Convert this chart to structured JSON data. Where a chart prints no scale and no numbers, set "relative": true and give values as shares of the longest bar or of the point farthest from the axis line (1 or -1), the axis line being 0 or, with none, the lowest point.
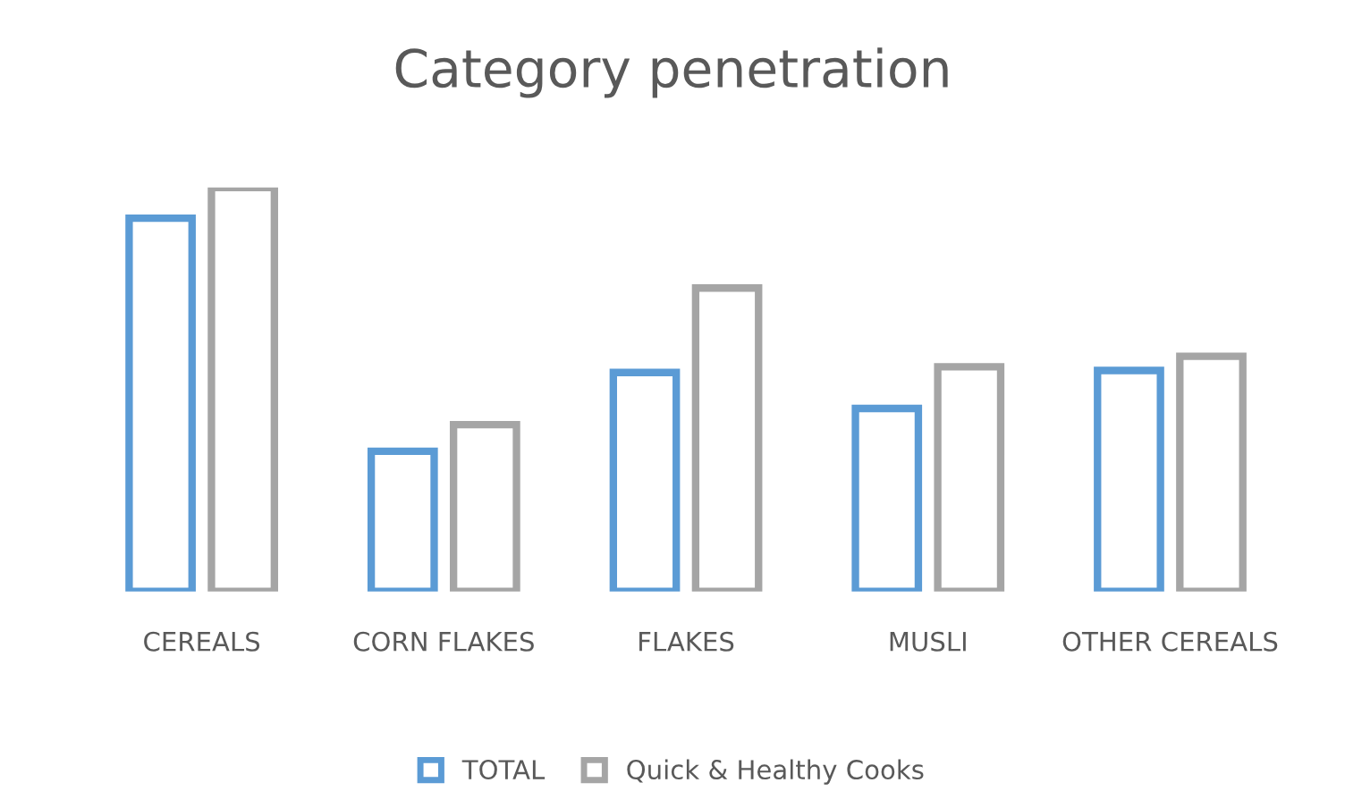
{
  "chart_data": {
    "type": "bar",
    "title": "Category penetration",
    "relative": true,
    "categories": [
      "CEREALS",
      "CORN FLAKES",
      "FLAKES",
      "MUSLI",
      "OTHER CEREALS"
    ],
    "series": [
      {
        "name": "TOTAL",
        "color": "#5b9bd5",
        "values": [
          0.924,
          0.347,
          0.542,
          0.453,
          0.547
        ]
      },
      {
        "name": "Quick & Healthy Cooks",
        "color": "#a5a5a5",
        "values": [
          1,
          0.413,
          0.751,
          0.556,
          0.582
        ]
      }
    ],
    "legend": "bottom",
    "grid": false
  }
}
